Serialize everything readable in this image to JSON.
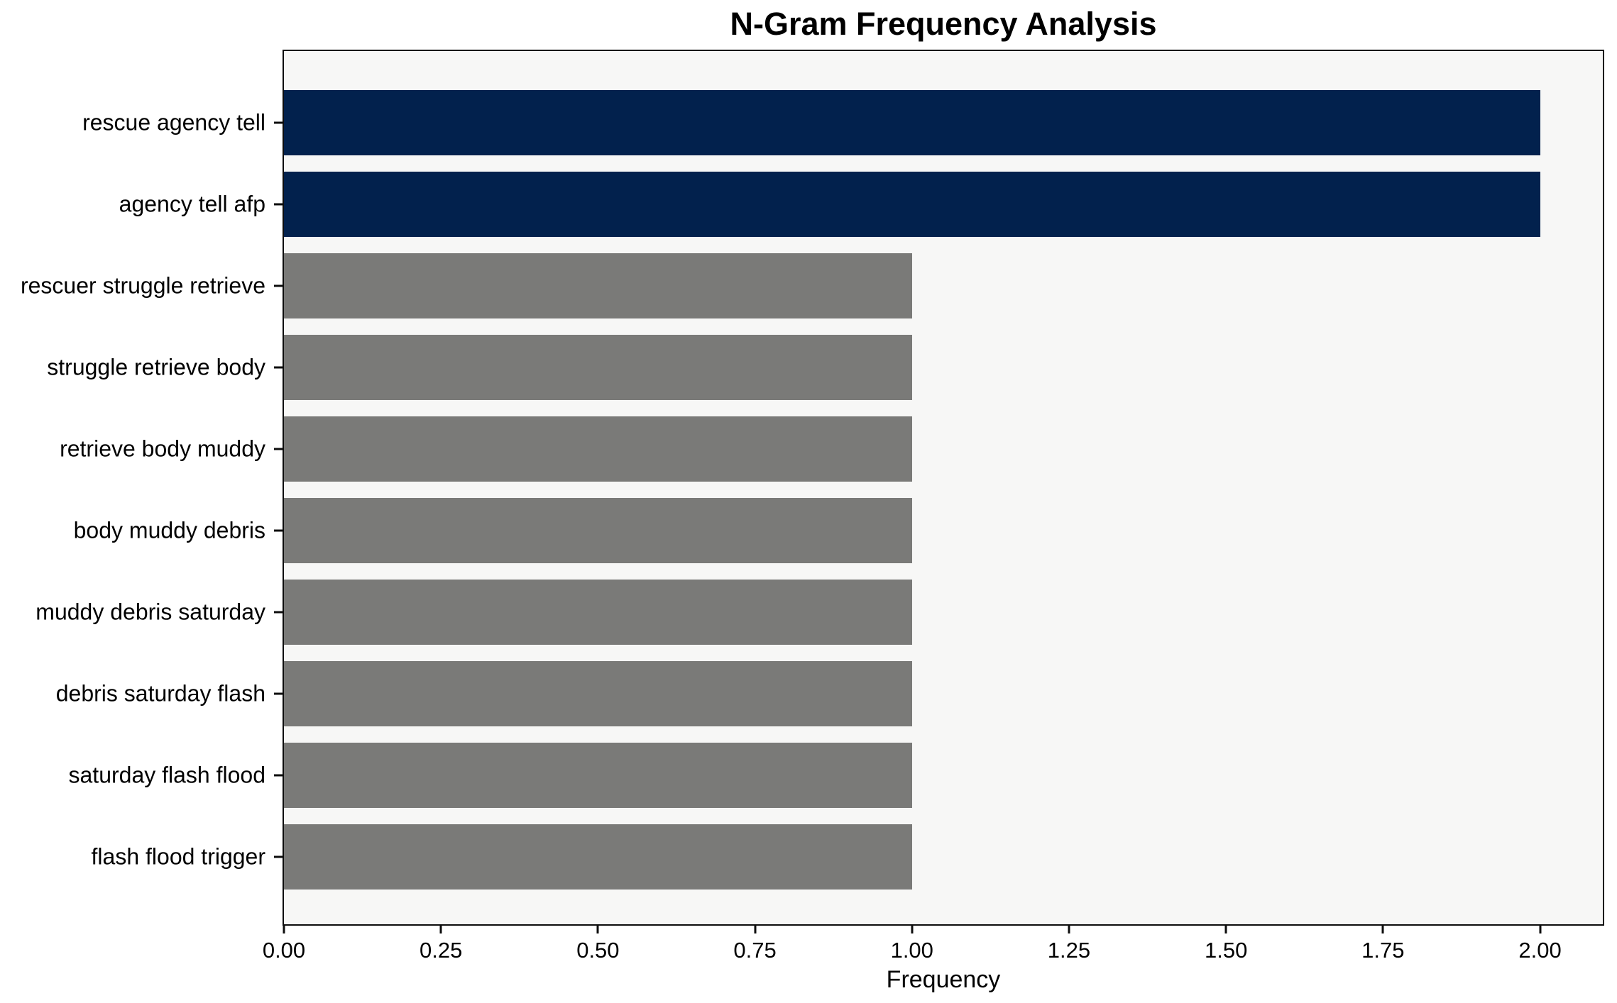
{
  "chart_data": {
    "type": "bar",
    "orientation": "horizontal",
    "title": "N-Gram Frequency Analysis",
    "xlabel": "Frequency",
    "categories": [
      "rescue agency tell",
      "agency tell afp",
      "rescuer struggle retrieve",
      "struggle retrieve body",
      "retrieve body muddy",
      "body muddy debris",
      "muddy debris saturday",
      "debris saturday flash",
      "saturday flash flood",
      "flash flood trigger"
    ],
    "values": [
      2,
      2,
      1,
      1,
      1,
      1,
      1,
      1,
      1,
      1
    ],
    "bar_colors": [
      "#02214D",
      "#02214D",
      "#7A7A78",
      "#7A7A78",
      "#7A7A78",
      "#7A7A78",
      "#7A7A78",
      "#7A7A78",
      "#7A7A78",
      "#7A7A78"
    ],
    "xlim": [
      0,
      2.1
    ],
    "x_tick_values": [
      0,
      0.25,
      0.5,
      0.75,
      1,
      1.25,
      1.5,
      1.75,
      2
    ],
    "x_tick_labels": [
      "0.00",
      "0.25",
      "0.50",
      "0.75",
      "1.00",
      "1.25",
      "1.50",
      "1.75",
      "2.00"
    ],
    "grid": false,
    "colors": {
      "highlight_bar": "#02214D",
      "neutral_bar": "#7A7A78",
      "plot_background": "#F7F7F6",
      "figure_background": "#FFFFFF",
      "axis": "#0D0D0D"
    }
  }
}
